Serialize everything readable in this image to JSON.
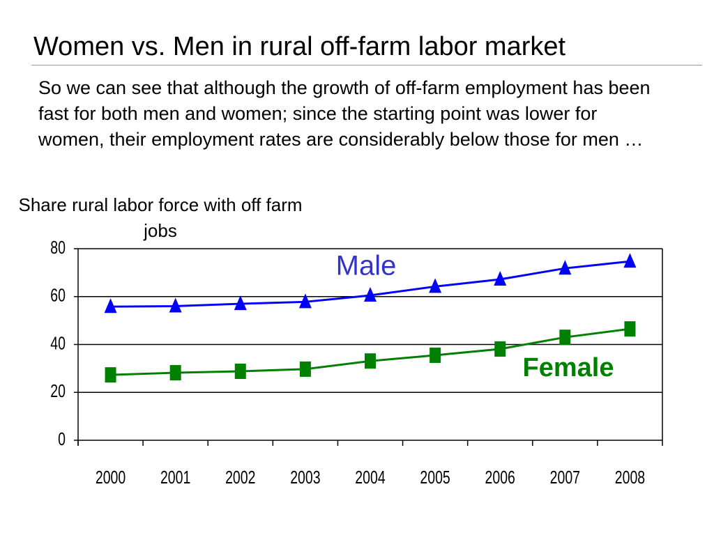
{
  "header": {
    "title": "Women vs. Men in rural off-farm labor market"
  },
  "body": {
    "text": "So we can see that although the growth of off-farm employment has been fast for both men and women; since the starting point was lower for women, their employment rates are considerably below those for men …"
  },
  "chart_data": {
    "type": "line",
    "y_label": "Share rural labor force with off farm jobs",
    "categories": [
      "2000",
      "2001",
      "2002",
      "2003",
      "2004",
      "2005",
      "2006",
      "2007",
      "2008"
    ],
    "series": [
      {
        "name": "Male",
        "color": "#0000ff",
        "label_color": "#3333cc",
        "marker": "triangle",
        "values": [
          55.8,
          56,
          57,
          57.8,
          60.5,
          64.2,
          67.2,
          71.8,
          74.7
        ]
      },
      {
        "name": "Female",
        "color": "#008000",
        "label_color": "#008000",
        "marker": "square",
        "values": [
          27.3,
          28.2,
          28.8,
          29.7,
          33.1,
          35.5,
          38.1,
          43,
          46.5
        ]
      }
    ],
    "ylim": [
      0,
      80
    ],
    "yticks": [
      0,
      20,
      40,
      60,
      80
    ],
    "grid": true
  }
}
